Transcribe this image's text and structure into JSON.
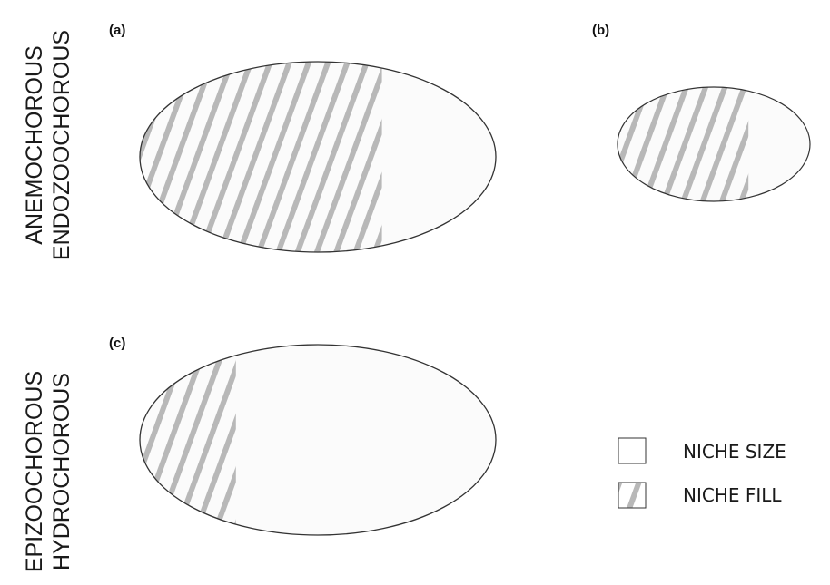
{
  "row_labels": {
    "top": [
      "ANEMOCHOROUS",
      "ENDOZOOCHOROUS"
    ],
    "bottom": [
      "EPIZOOCHOROUS",
      "HYDROCHOROUS"
    ]
  },
  "panels": [
    {
      "id": "a",
      "label": "(a)",
      "fill_fraction": 0.68
    },
    {
      "id": "b",
      "label": "(b)",
      "fill_fraction": 0.68
    },
    {
      "id": "c",
      "label": "(c)",
      "fill_fraction": 0.27
    }
  ],
  "legend": {
    "size_label": "NICHE SIZE",
    "fill_label": "NICHE FILL"
  },
  "colors": {
    "ellipse_fill": "#fbfbfb",
    "outline": "#333333",
    "hatch": "#b8b8b8"
  }
}
